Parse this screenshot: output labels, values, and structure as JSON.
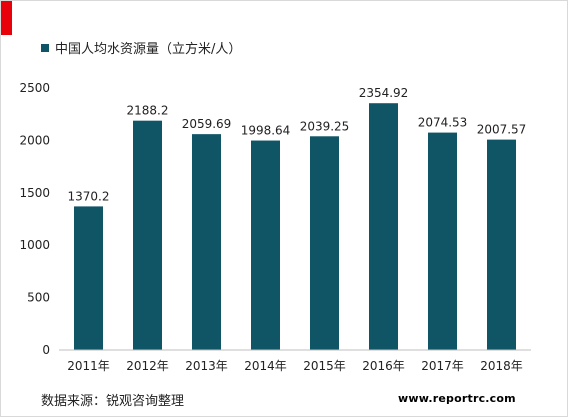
{
  "legend": {
    "label": "中国人均水资源量（立方米/人）"
  },
  "source": "数据来源：锐观咨询整理",
  "website": "www.reportrc.com",
  "colors": {
    "bar": "#0f5566",
    "accent": "#e8000b",
    "axis": "#bfbfbf"
  },
  "chart_data": {
    "type": "bar",
    "categories": [
      "2011年",
      "2012年",
      "2013年",
      "2014年",
      "2015年",
      "2016年",
      "2017年",
      "2018年"
    ],
    "series": [
      {
        "name": "中国人均水资源量（立方米/人）",
        "values": [
          1370.2,
          2188.2,
          2059.69,
          1998.64,
          2039.25,
          2354.92,
          2074.53,
          2007.57
        ],
        "labels": [
          "1370.2",
          "2188.2",
          "2059.69",
          "1998.64",
          "2039.25",
          "2354.92",
          "2074.53",
          "2007.57"
        ]
      }
    ],
    "y_ticks": [
      0,
      500,
      1000,
      1500,
      2000,
      2500
    ],
    "ylim": [
      0,
      2500
    ],
    "grid": false,
    "legend_position": "top-left"
  }
}
